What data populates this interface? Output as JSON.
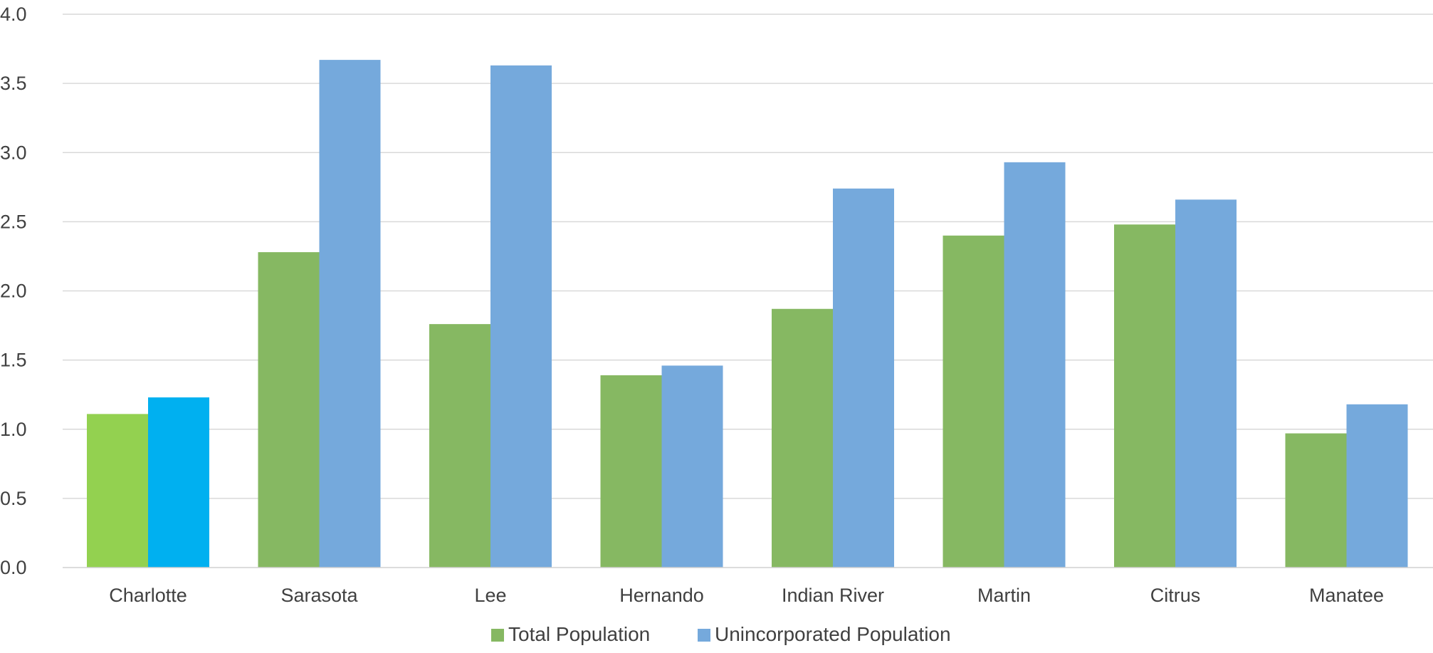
{
  "chart_data": {
    "type": "bar",
    "categories": [
      "Charlotte",
      "Sarasota",
      "Lee",
      "Hernando",
      "Indian River",
      "Martin",
      "Citrus",
      "Manatee"
    ],
    "series": [
      {
        "name": "Total Population",
        "values": [
          1.11,
          2.28,
          1.76,
          1.39,
          1.87,
          2.4,
          2.48,
          0.97
        ],
        "color": "#86b862",
        "highlight_color": "#93d150"
      },
      {
        "name": "Unincorporated Population",
        "values": [
          1.23,
          3.67,
          3.63,
          1.46,
          2.74,
          2.93,
          2.66,
          1.18
        ],
        "color": "#75a9dc",
        "highlight_color": "#00b0f0"
      }
    ],
    "highlight_category": "Charlotte",
    "y_ticks": [
      "0.0",
      "0.5",
      "1.0",
      "1.5",
      "2.0",
      "2.5",
      "3.0",
      "3.5",
      "4.0"
    ],
    "ylim": [
      0,
      4
    ],
    "grid": true,
    "legend_position": "bottom",
    "title": "",
    "xlabel": "",
    "ylabel": ""
  }
}
